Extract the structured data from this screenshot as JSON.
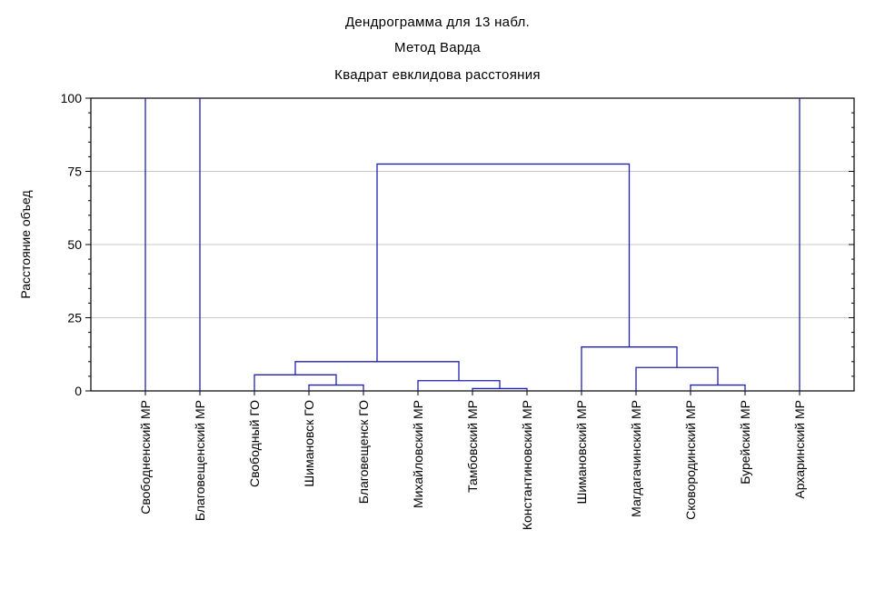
{
  "chart_data": {
    "type": "dendrogram",
    "title": "Дендрограмма для 13 набл.",
    "subtitle": "Метод Варда",
    "subtitle2": "Квадрат евклидова расстояния",
    "ylabel": "Расстояние объед",
    "ylim": [
      0,
      100
    ],
    "yticks": [
      "0",
      "25",
      "50",
      "75",
      "100"
    ],
    "grid": true,
    "line_color": "#1f1fb0",
    "leaves": [
      "Свободненский МР",
      "Благовещенский МР",
      "Свободный ГО",
      "Шимановск ГО",
      "Благовещенск ГО",
      "Михайловский МР",
      "Тамбовский МР",
      "Константиновский МР",
      "Шимановский МР",
      "Магдагачинский МР",
      "Сковородинский МР",
      "Бурейский МР",
      "Архаринский МР"
    ],
    "merges": [
      {
        "left": "Тамбовский МР",
        "right": "Константиновский МР",
        "height": 0.8
      },
      {
        "left": "Шимановск ГО",
        "right": "Благовещенск ГО",
        "height": 2
      },
      {
        "left": "Сковородинский МР",
        "right": "Бурейский МР",
        "height": 2
      },
      {
        "left": "Михайловский МР",
        "right": "Тамбовский МР + Константиновский МР",
        "height": 3.5
      },
      {
        "left": "Свободный ГО",
        "right": "Шимановск ГО + Благовещенск ГО",
        "height": 5.5
      },
      {
        "left": "Магдагачинский МР",
        "right": "Сковородинский МР + Бурейский МР",
        "height": 8
      },
      {
        "left": "Свободный ГО + Шимановск ГО + Благовещенск ГО",
        "right": "Михайловский МР + Тамбовский МР + Константиновский МР",
        "height": 10
      },
      {
        "left": "Шимановский МР",
        "right": "Магдагачинский МР + Сковородинский МР + Бурейский МР",
        "height": 15
      },
      {
        "left": "Свободный ГО … Константиновский МР",
        "right": "Шимановский МР … Бурейский МР",
        "height": 77.5
      },
      {
        "left": "Свободный ГО … Бурейский МР",
        "right": "",
        "height": 100
      },
      {
        "left": "Свободненский МР",
        "right": "",
        "height": 100
      },
      {
        "left": "Благовещенский МР",
        "right": "",
        "height": 100
      },
      {
        "left": "Архаринский МР",
        "right": "",
        "height": 100
      }
    ]
  }
}
